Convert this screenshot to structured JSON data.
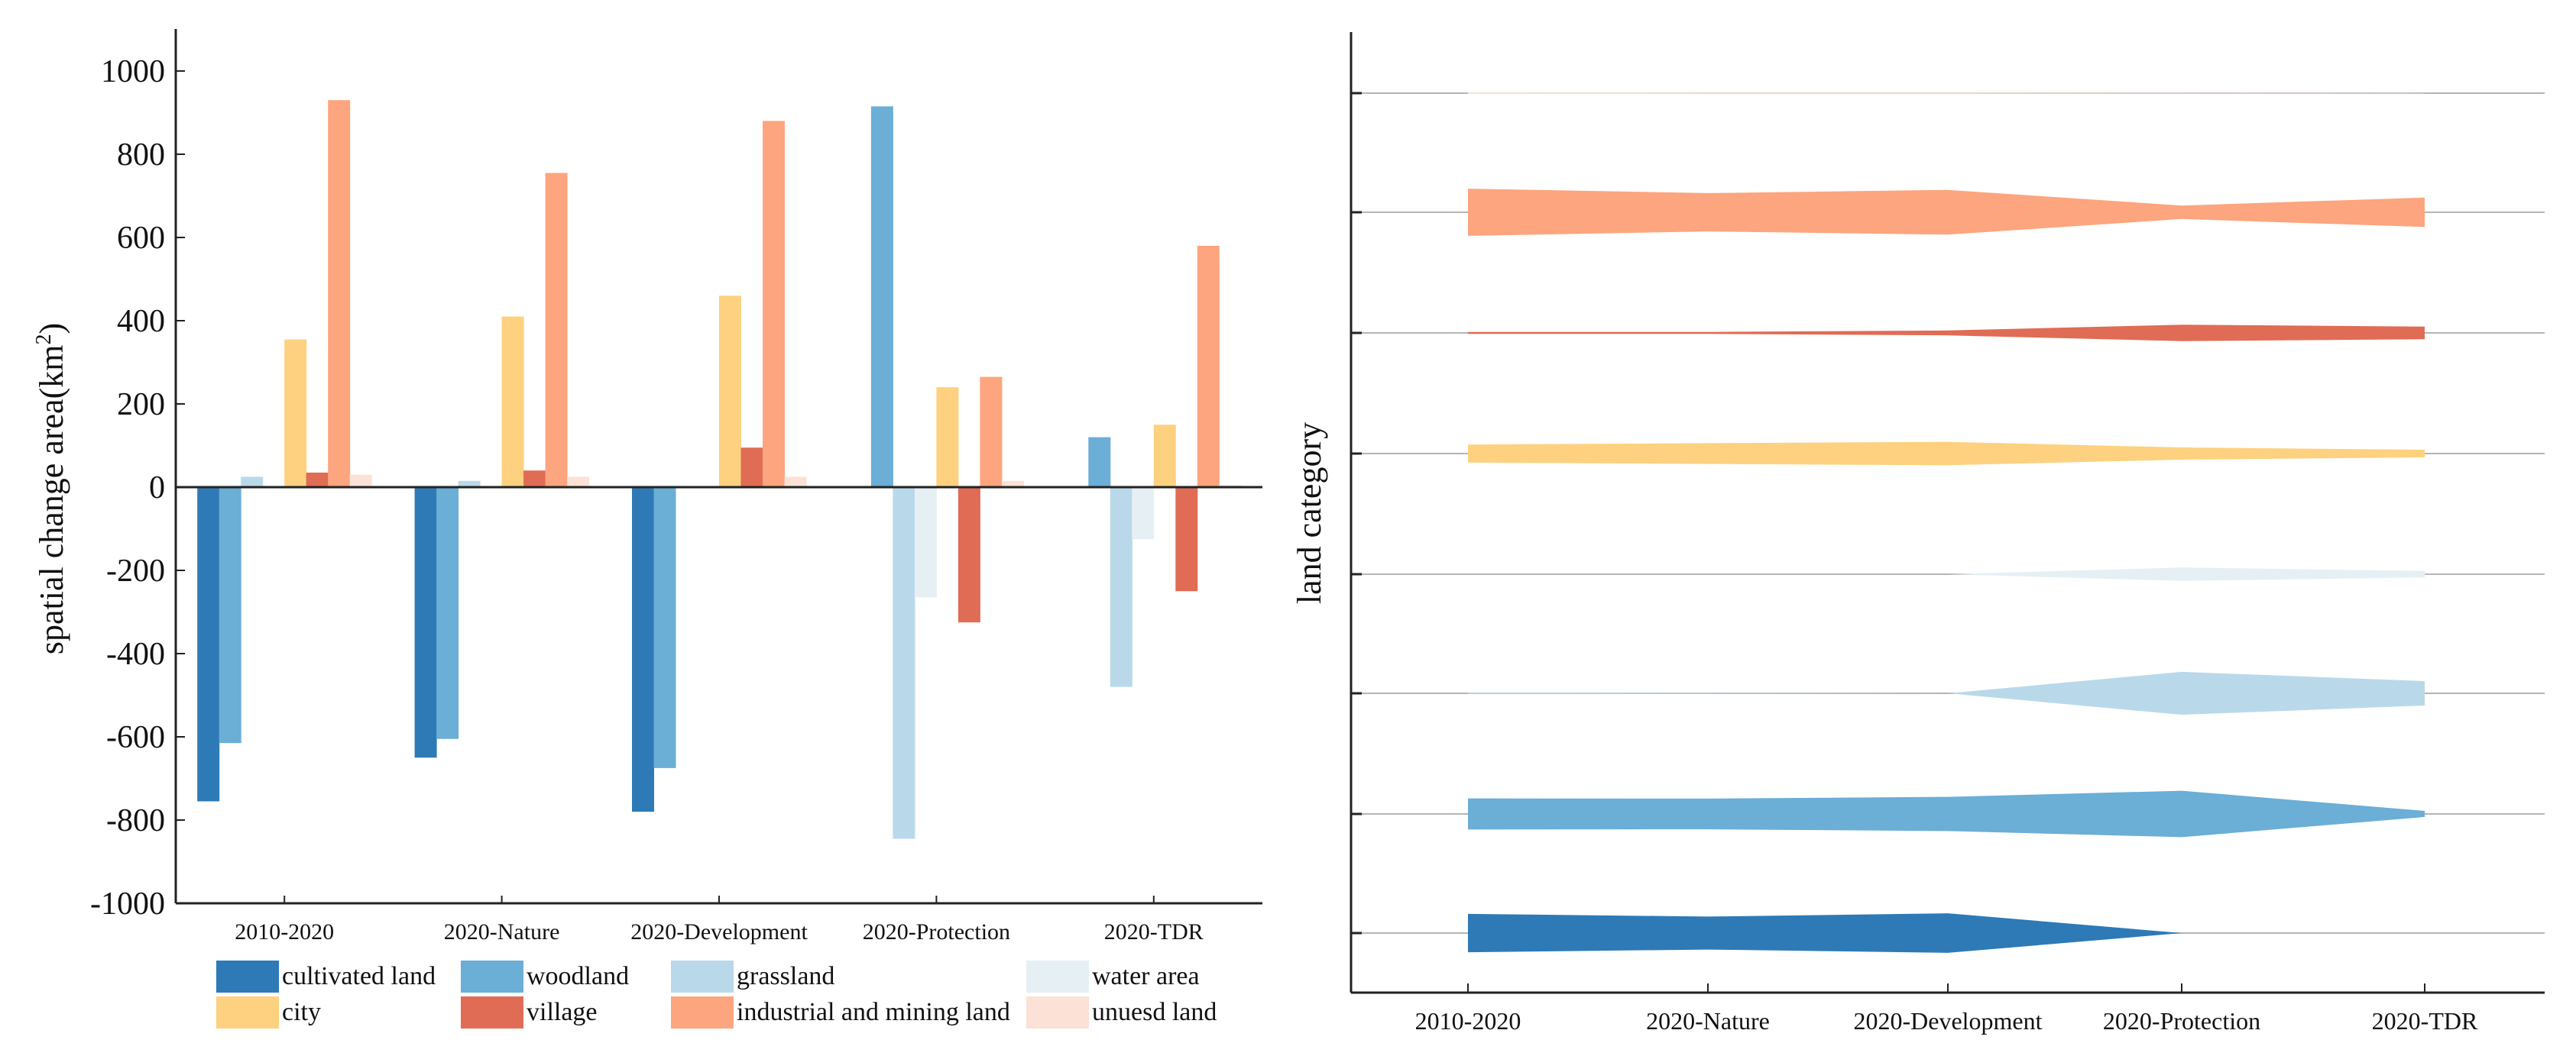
{
  "chart_data": [
    {
      "type": "bar",
      "ylabel_main": "spatial change area(km",
      "ylabel_sup": "2",
      "ylabel_close": ")",
      "xlabel": "",
      "ylim": [
        -1000,
        1000
      ],
      "yticks": [
        "-1000",
        "-800",
        "-600",
        "-400",
        "-200",
        "0",
        "200",
        "400",
        "600",
        "800",
        "1000"
      ],
      "categories": [
        "2010-2020",
        "2020-Nature",
        "2020-Development",
        "2020-Protection",
        "2020-TDR"
      ],
      "series": [
        {
          "name": "cultivated land",
          "color": "#2E7AB6",
          "values": [
            -755,
            -650,
            -780,
            0,
            0
          ]
        },
        {
          "name": "woodland",
          "color": "#6BAED6",
          "values": [
            -615,
            -605,
            -675,
            915,
            120
          ]
        },
        {
          "name": "grassland",
          "color": "#B9D9EA",
          "values": [
            25,
            15,
            0,
            -845,
            -480
          ]
        },
        {
          "name": "water area",
          "color": "#E6F0F4",
          "values": [
            0,
            0,
            0,
            -265,
            -125
          ]
        },
        {
          "name": "city",
          "color": "#FDD17F",
          "values": [
            355,
            410,
            460,
            240,
            150
          ]
        },
        {
          "name": "village",
          "color": "#E06C55",
          "values": [
            35,
            40,
            95,
            -325,
            -250
          ]
        },
        {
          "name": "industrial and mining land",
          "color": "#FCA57E",
          "values": [
            930,
            755,
            880,
            265,
            580
          ]
        },
        {
          "name": "unuesd land",
          "color": "#FCE1D6",
          "values": [
            30,
            25,
            25,
            15,
            5
          ]
        }
      ]
    },
    {
      "type": "area",
      "ylabel": "land category",
      "categories": [
        "2010-2020",
        "2020-Nature",
        "2020-Development",
        "2020-Protection",
        "2020-TDR"
      ],
      "bands": [
        {
          "name": "cultivated land",
          "color": "#2E7AB6",
          "values": [
            755,
            650,
            780,
            0,
            0
          ]
        },
        {
          "name": "woodland",
          "color": "#6BAED6",
          "values": [
            615,
            605,
            675,
            915,
            120
          ]
        },
        {
          "name": "grassland",
          "color": "#B9D9EA",
          "values": [
            25,
            15,
            0,
            845,
            480
          ]
        },
        {
          "name": "water area",
          "color": "#E6F0F4",
          "values": [
            0,
            0,
            0,
            265,
            125
          ]
        },
        {
          "name": "city",
          "color": "#FDD17F",
          "values": [
            355,
            410,
            460,
            240,
            150
          ]
        },
        {
          "name": "village",
          "color": "#E06C55",
          "values": [
            35,
            40,
            95,
            325,
            250
          ]
        },
        {
          "name": "industrial and mining land",
          "color": "#FCA57E",
          "values": [
            930,
            755,
            880,
            265,
            580
          ]
        },
        {
          "name": "unuesd land",
          "color": "#FCE1D6",
          "values": [
            30,
            25,
            25,
            15,
            5
          ]
        }
      ]
    }
  ],
  "legend": {
    "items": [
      {
        "label": "cultivated land",
        "color": "#2E7AB6"
      },
      {
        "label": "woodland",
        "color": "#6BAED6"
      },
      {
        "label": "grassland",
        "color": "#B9D9EA"
      },
      {
        "label": "water area",
        "color": "#E6F0F4"
      },
      {
        "label": "city",
        "color": "#FDD17F"
      },
      {
        "label": "village",
        "color": "#E06C55"
      },
      {
        "label": "industrial and mining land",
        "color": "#FCA57E"
      },
      {
        "label": "unuesd land",
        "color": "#FCE1D6"
      }
    ]
  }
}
